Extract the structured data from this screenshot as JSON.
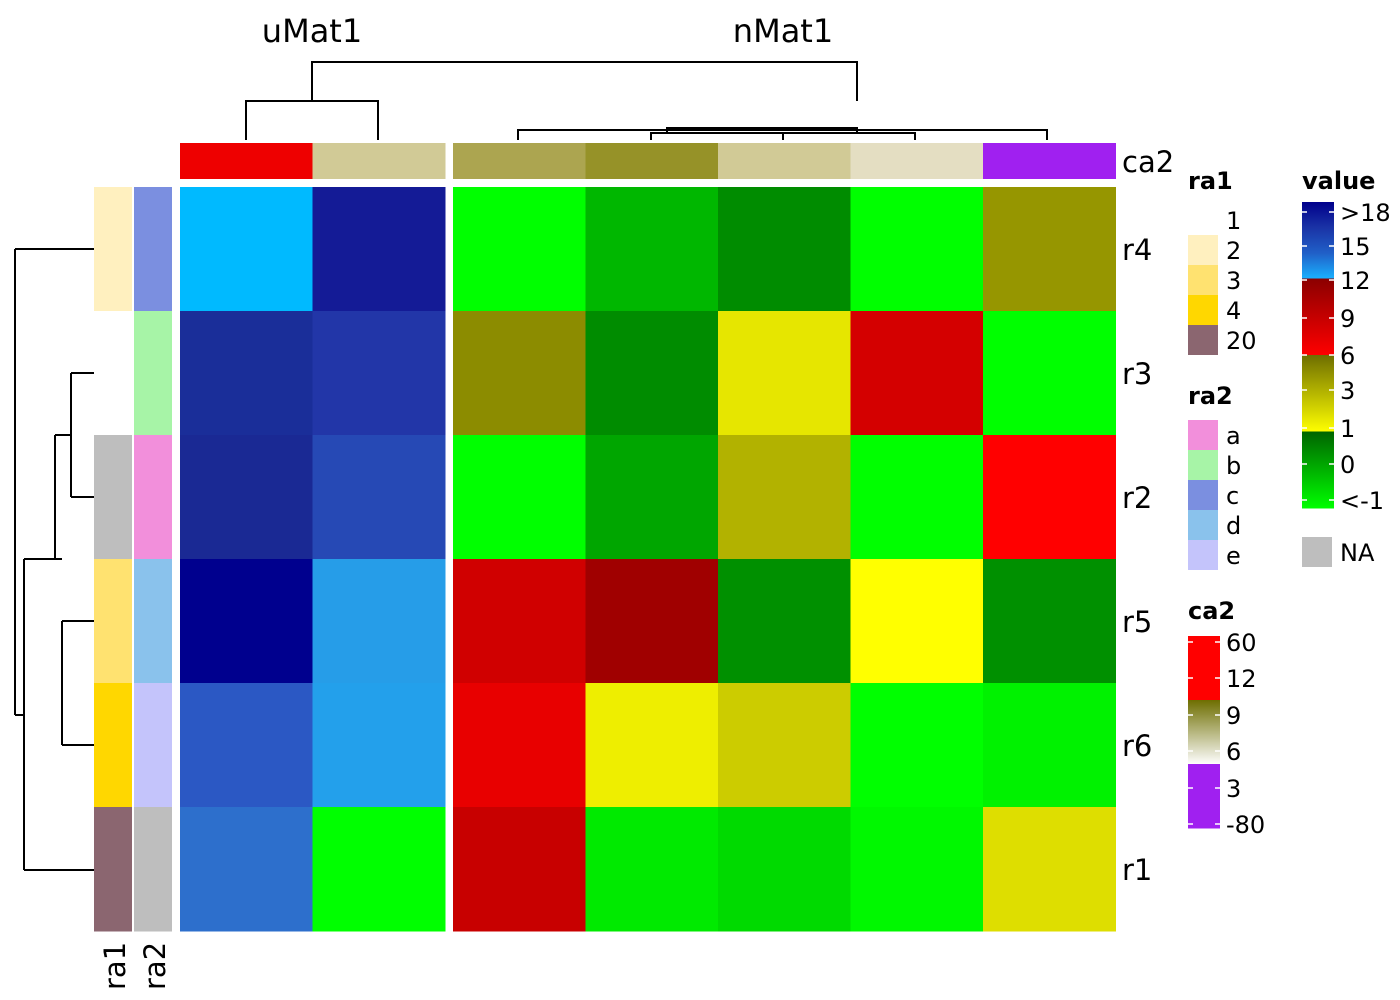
{
  "chart_data": {
    "type": "heatmap",
    "column_groups": [
      {
        "title": "uMat1",
        "columns": 2
      },
      {
        "title": "nMat1",
        "columns": 5
      }
    ],
    "rows": [
      "r4",
      "r3",
      "r2",
      "r5",
      "r6",
      "r1"
    ],
    "cells": [
      [
        "#00baff",
        "#141b96",
        "#00ff00",
        "#00b700",
        "#008c00",
        "#00ff00",
        "#969600"
      ],
      [
        "#1a2e99",
        "#2236a8",
        "#8c8c00",
        "#008c00",
        "#e6e600",
        "#d40000",
        "#00ff00"
      ],
      [
        "#1a2994",
        "#2649b5",
        "#00ff00",
        "#00a600",
        "#b2b200",
        "#00ff00",
        "#ff0000"
      ],
      [
        "#00008e",
        "#269de8",
        "#d00000",
        "#a00000",
        "#009000",
        "#ffff00",
        "#009000"
      ],
      [
        "#2b58c4",
        "#23a0eb",
        "#e80000",
        "#eeee00",
        "#cccc00",
        "#00ff00",
        "#00f200"
      ],
      [
        "#2d6fcc",
        "#00ff00",
        "#c80000",
        "#00ea00",
        "#00da00",
        "#00f800",
        "#dede00"
      ]
    ],
    "column_annotation": {
      "name": "ca2",
      "colors": [
        "#ee0000",
        "#d1ca96",
        "#aca550",
        "#969228",
        "#d1ca96",
        "#e4dec2",
        "#a020f0"
      ]
    },
    "row_annotations": [
      {
        "name": "ra1",
        "colors": [
          "#fff0bf",
          "#ffffff",
          "#bebebe",
          "#ffe270",
          "#ffd700",
          "#8b6670"
        ]
      },
      {
        "name": "ra2",
        "colors": [
          "#7b8fe0",
          "#a7f4a7",
          "#f28fdb",
          "#8ac2ec",
          "#c4c4fb",
          "#bebebe"
        ]
      }
    ],
    "legends": {
      "ra1": {
        "title": "ra1",
        "items": [
          {
            "label": "1",
            "color": "#ffffff"
          },
          {
            "label": "2",
            "color": "#fff0bf"
          },
          {
            "label": "3",
            "color": "#ffe270"
          },
          {
            "label": "4",
            "color": "#ffd700"
          },
          {
            "label": "20",
            "color": "#8b6670"
          }
        ]
      },
      "ra2": {
        "title": "ra2",
        "items": [
          {
            "label": "a",
            "color": "#f28fdb"
          },
          {
            "label": "b",
            "color": "#a7f4a7"
          },
          {
            "label": "c",
            "color": "#7b8fe0"
          },
          {
            "label": "d",
            "color": "#8ac2ec"
          },
          {
            "label": "e",
            "color": "#c4c4fb"
          }
        ]
      },
      "ca2": {
        "title": "ca2",
        "ticks": [
          "60",
          "12",
          "9",
          "6",
          "3",
          "-80"
        ],
        "segments": [
          {
            "type": "solid",
            "color": "#ff0000"
          },
          {
            "type": "gradient",
            "colors": [
              "#6e6e00",
              "#ffffff"
            ]
          },
          {
            "type": "solid",
            "color": "#a020f0"
          }
        ]
      },
      "value": {
        "title": "value",
        "ticks": [
          ">18",
          "15",
          "12",
          "9",
          "6",
          "3",
          "1",
          "0",
          "<-1"
        ],
        "segments": [
          {
            "type": "gradient",
            "colors": [
              "#00008b",
              "#1a33a6",
              "#2060c8",
              "#1ab2ff"
            ]
          },
          {
            "type": "gradient",
            "colors": [
              "#8b0000",
              "#ff0000"
            ]
          },
          {
            "type": "gradient",
            "colors": [
              "#6e6e00",
              "#ffff00"
            ]
          },
          {
            "type": "gradient",
            "colors": [
              "#006400",
              "#00ff00"
            ]
          }
        ]
      },
      "na": {
        "label": "NA",
        "color": "#bebebe"
      }
    }
  }
}
